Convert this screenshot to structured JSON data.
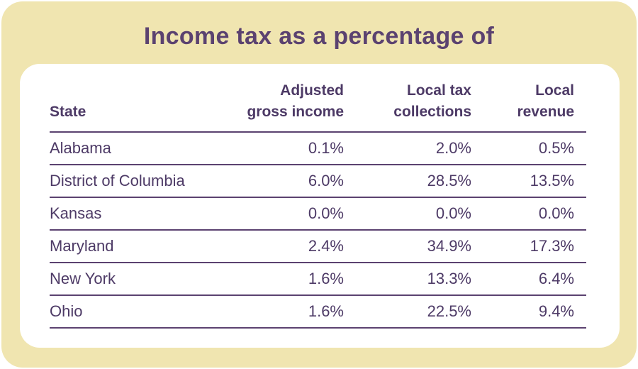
{
  "title": "Income tax as a percentage of",
  "table": {
    "headers": {
      "state": "State",
      "agi": [
        "Adjusted",
        "gross income"
      ],
      "local_tax": [
        "Local tax",
        "collections"
      ],
      "local_revenue": [
        "Local",
        "revenue"
      ]
    },
    "rows": [
      {
        "state": "Alabama",
        "agi": "0.1%",
        "local_tax": "2.0%",
        "local_revenue": "0.5%"
      },
      {
        "state": "District of Columbia",
        "agi": "6.0%",
        "local_tax": "28.5%",
        "local_revenue": "13.5%"
      },
      {
        "state": "Kansas",
        "agi": "0.0%",
        "local_tax": "0.0%",
        "local_revenue": "0.0%"
      },
      {
        "state": "Maryland",
        "agi": "2.4%",
        "local_tax": "34.9%",
        "local_revenue": "17.3%"
      },
      {
        "state": "New York",
        "agi": "1.6%",
        "local_tax": "13.3%",
        "local_revenue": "6.4%"
      },
      {
        "state": "Ohio",
        "agi": "1.6%",
        "local_tax": "22.5%",
        "local_revenue": "9.4%"
      }
    ]
  },
  "colors": {
    "frame": "#f0e5b0",
    "text": "#5b4270",
    "card": "#ffffff"
  }
}
